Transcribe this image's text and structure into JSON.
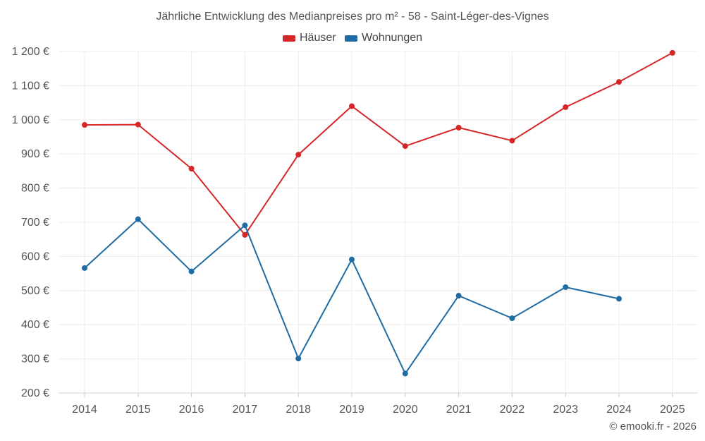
{
  "chart_data": {
    "type": "line",
    "title": "Jährliche Entwicklung des Medianpreises pro m² - 58 - Saint-Léger-des-Vignes",
    "x": [
      "2014",
      "2015",
      "2016",
      "2017",
      "2018",
      "2019",
      "2020",
      "2021",
      "2022",
      "2023",
      "2024",
      "2025"
    ],
    "series": [
      {
        "name": "Häuser",
        "color": "#d62728",
        "values": [
          985,
          986,
          857,
          663,
          898,
          1040,
          923,
          977,
          939,
          1037,
          1111,
          1196
        ]
      },
      {
        "name": "Wohnungen",
        "color": "#1f6ba3",
        "values": [
          566,
          709,
          556,
          691,
          301,
          591,
          257,
          485,
          419,
          510,
          476,
          null
        ]
      }
    ],
    "ylim": [
      200,
      1200
    ],
    "y_ticks": [
      200,
      300,
      400,
      500,
      600,
      700,
      800,
      900,
      1000,
      1100,
      1200
    ],
    "y_tick_labels": [
      "200 €",
      "300 €",
      "400 €",
      "500 €",
      "600 €",
      "700 €",
      "800 €",
      "900 €",
      "1 000 €",
      "1 100 €",
      "1 200 €"
    ],
    "grid": true,
    "legend_position": "top-center",
    "xlabel": "",
    "ylabel": ""
  },
  "credit": "© emooki.fr - 2026"
}
